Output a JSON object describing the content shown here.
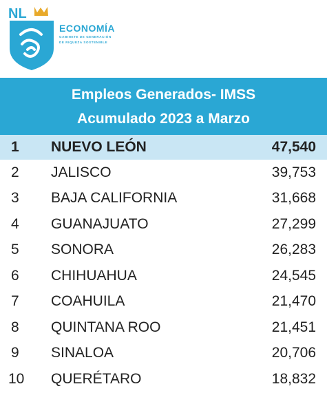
{
  "logo": {
    "nl": "NL",
    "brand": "ECONOMÍA",
    "subtitle_line1": "GABINETE DE GENERACIÓN",
    "subtitle_line2": "DE RIQUEZA SOSTENIBLE",
    "color": "#2aa7d4",
    "crown_color": "#e8a92a"
  },
  "header": {
    "line1": "Empleos Generados- IMSS",
    "line2": "Acumulado 2023 a Marzo",
    "bg_color": "#2aa7d4"
  },
  "rows": [
    {
      "rank": "1",
      "state": "NUEVO LEÓN",
      "value": "47,540"
    },
    {
      "rank": "2",
      "state": "JALISCO",
      "value": "39,753"
    },
    {
      "rank": "3",
      "state": "BAJA CALIFORNIA",
      "value": "31,668"
    },
    {
      "rank": "4",
      "state": "GUANAJUATO",
      "value": "27,299"
    },
    {
      "rank": "5",
      "state": "SONORA",
      "value": "26,283"
    },
    {
      "rank": "6",
      "state": "CHIHUAHUA",
      "value": "24,545"
    },
    {
      "rank": "7",
      "state": "COAHUILA",
      "value": "21,470"
    },
    {
      "rank": "8",
      "state": "QUINTANA ROO",
      "value": "21,451"
    },
    {
      "rank": "9",
      "state": "SINALOA",
      "value": "20,706"
    },
    {
      "rank": "10",
      "state": "QUERÉTARO",
      "value": "18,832"
    }
  ],
  "highlight_color": "#c9e6f4"
}
